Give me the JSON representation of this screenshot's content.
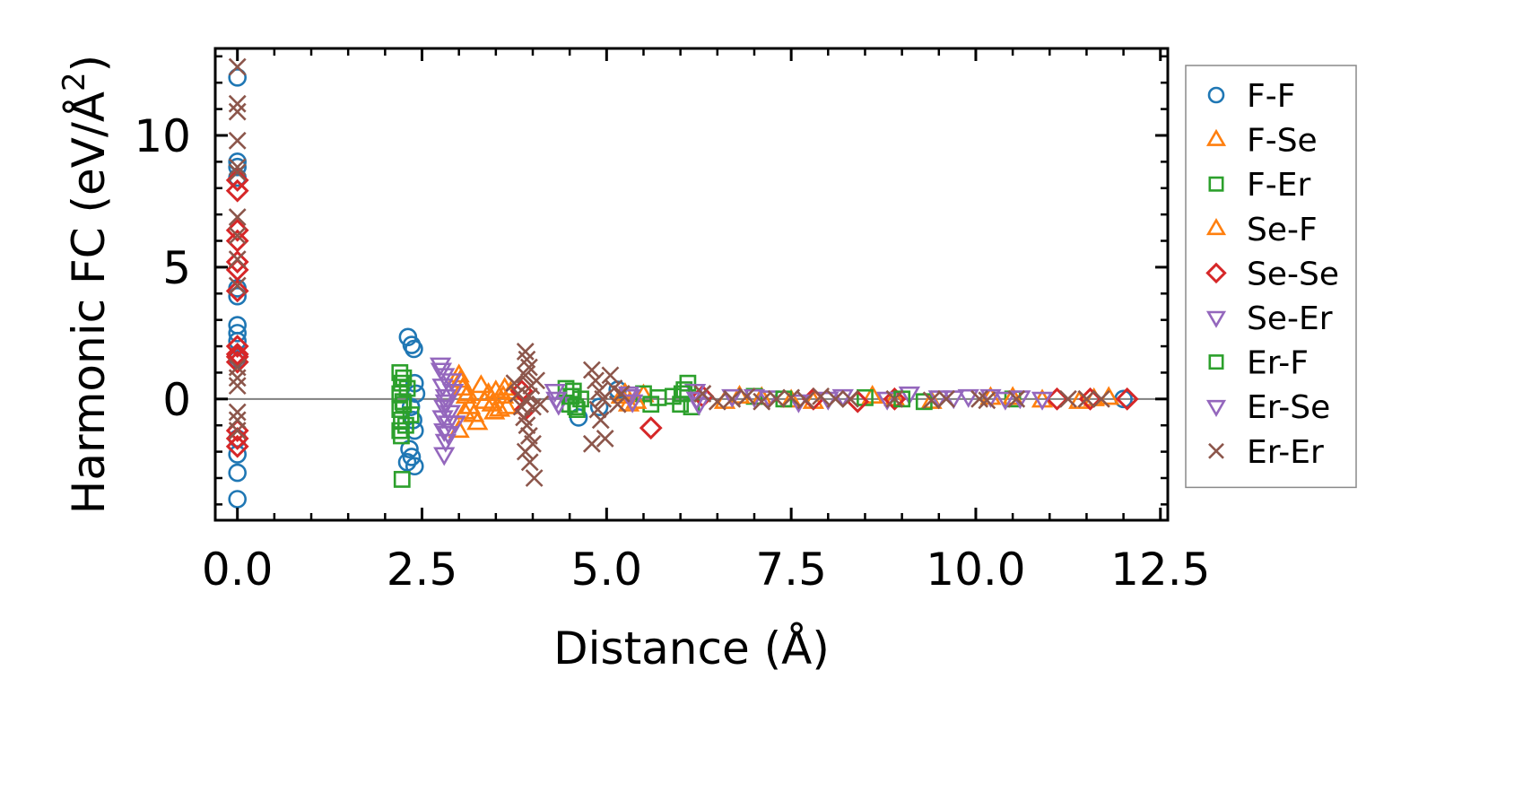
{
  "chart_data": {
    "type": "scatter",
    "xlabel": "Distance (Å)",
    "ylabel_prefix": "Harmonic FC (eV/Å",
    "ylabel_sup": "2",
    "ylabel_suffix": ")",
    "xlim": [
      -0.3,
      12.6
    ],
    "ylim": [
      -4.6,
      13.3
    ],
    "xticks": [
      "0.0",
      "2.5",
      "5.0",
      "7.5",
      "10.0",
      "12.5"
    ],
    "yticks": [
      "0",
      "5",
      "10"
    ],
    "legend_position": "right-outside",
    "series": [
      {
        "name": "F-F",
        "marker": "circle",
        "color": "#1f77b4",
        "points": [
          [
            0,
            12.2
          ],
          [
            0,
            9
          ],
          [
            0,
            8.8
          ],
          [
            0,
            8.4
          ],
          [
            0,
            4.2
          ],
          [
            0,
            3.9
          ],
          [
            0,
            2.8
          ],
          [
            0,
            2.5
          ],
          [
            0,
            2.2
          ],
          [
            0,
            1.5
          ],
          [
            0,
            -1.5
          ],
          [
            0,
            -2.1
          ],
          [
            0,
            -2.8
          ],
          [
            0,
            -3.8
          ],
          [
            2.31,
            2.35
          ],
          [
            2.36,
            2.05
          ],
          [
            2.39,
            1.9
          ],
          [
            2.4,
            0.6
          ],
          [
            2.42,
            0.2
          ],
          [
            2.35,
            -0.3
          ],
          [
            2.38,
            -0.8
          ],
          [
            2.4,
            -1.2
          ],
          [
            2.33,
            -1.9
          ],
          [
            2.36,
            -2.2
          ],
          [
            2.3,
            -2.4
          ],
          [
            2.4,
            -2.55
          ],
          [
            4.62,
            -0.7
          ],
          [
            4.9,
            -0.3
          ],
          [
            5.15,
            0.35
          ],
          [
            12.0,
            0
          ]
        ]
      },
      {
        "name": "F-Se",
        "marker": "triangle-up",
        "color": "#ff7f0e",
        "points": [
          [
            3.0,
            0.9
          ],
          [
            3.05,
            0.4
          ],
          [
            3.1,
            0.1
          ],
          [
            3.15,
            -0.3
          ],
          [
            3.2,
            -0.6
          ],
          [
            3.25,
            -0.9
          ],
          [
            3.0,
            -1.2
          ],
          [
            3.3,
            0.5
          ],
          [
            3.4,
            0.2
          ],
          [
            3.45,
            -0.2
          ],
          [
            3.5,
            0.3
          ],
          [
            3.55,
            -0.4
          ],
          [
            3.6,
            0.1
          ],
          [
            3.65,
            -0.3
          ],
          [
            3.7,
            0.25
          ],
          [
            5.2,
            0.1
          ],
          [
            5.3,
            -0.2
          ],
          [
            5.5,
            0.15
          ],
          [
            6.6,
            -0.1
          ],
          [
            7.1,
            0.05
          ],
          [
            7.8,
            -0.1
          ],
          [
            8.6,
            0.1
          ],
          [
            9.4,
            -0.1
          ],
          [
            10.2,
            0.05
          ],
          [
            10.9,
            -0.05
          ],
          [
            11.4,
            -0.1
          ],
          [
            11.8,
            0.05
          ]
        ]
      },
      {
        "name": "F-Er",
        "marker": "square",
        "color": "#2ca02c",
        "points": [
          [
            2.2,
            1.0
          ],
          [
            2.22,
            0.6
          ],
          [
            2.2,
            0.2
          ],
          [
            2.24,
            -0.1
          ],
          [
            2.2,
            -0.4
          ],
          [
            2.22,
            -0.8
          ],
          [
            2.2,
            -1.2
          ],
          [
            2.22,
            -1.4
          ],
          [
            2.23,
            -3.05
          ],
          [
            2.3,
            0.4
          ],
          [
            2.35,
            -0.6
          ],
          [
            4.45,
            0.4
          ],
          [
            4.5,
            -0.2
          ],
          [
            4.55,
            0.3
          ],
          [
            4.6,
            -0.4
          ],
          [
            4.65,
            0.0
          ],
          [
            5.5,
            0.2
          ],
          [
            5.6,
            -0.2
          ],
          [
            5.9,
            0.1
          ],
          [
            6.0,
            -0.2
          ],
          [
            6.05,
            0.35
          ],
          [
            6.1,
            0.6
          ],
          [
            6.15,
            -0.3
          ],
          [
            7.0,
            0.1
          ],
          [
            8.5,
            0.05
          ],
          [
            9.3,
            -0.1
          ],
          [
            10.5,
            0.0
          ]
        ]
      },
      {
        "name": "Se-F",
        "marker": "triangle-up",
        "color": "#ff7f0e",
        "points": [
          [
            3.02,
            0.7
          ],
          [
            3.08,
            -0.5
          ],
          [
            3.12,
            0.2
          ],
          [
            3.35,
            -0.1
          ],
          [
            3.48,
            -0.5
          ],
          [
            3.62,
            0.4
          ],
          [
            5.25,
            0.2
          ],
          [
            5.4,
            -0.1
          ],
          [
            6.8,
            0.1
          ],
          [
            7.5,
            -0.05
          ],
          [
            8.9,
            0.0
          ],
          [
            10.5,
            0.05
          ],
          [
            11.6,
            0.0
          ]
        ]
      },
      {
        "name": "Se-Se",
        "marker": "diamond",
        "color": "#d62728",
        "points": [
          [
            0,
            8.3
          ],
          [
            0,
            7.9
          ],
          [
            0,
            6.4
          ],
          [
            0,
            6.0
          ],
          [
            0,
            5.2
          ],
          [
            0,
            4.9
          ],
          [
            0,
            4.1
          ],
          [
            0,
            2.0
          ],
          [
            0,
            1.7
          ],
          [
            0,
            1.6
          ],
          [
            0,
            1.4
          ],
          [
            0,
            -1.2
          ],
          [
            0,
            -1.5
          ],
          [
            0,
            -1.8
          ],
          [
            3.85,
            0.3
          ],
          [
            3.9,
            -0.4
          ],
          [
            5.6,
            -1.1
          ],
          [
            6.3,
            0.1
          ],
          [
            7.8,
            0.0
          ],
          [
            8.4,
            -0.1
          ],
          [
            8.9,
            0.0
          ],
          [
            11.1,
            0.0
          ],
          [
            11.55,
            0.0
          ],
          [
            12.05,
            0.0
          ]
        ]
      },
      {
        "name": "Se-Er",
        "marker": "triangle-down",
        "color": "#9467bd",
        "points": [
          [
            2.75,
            1.3
          ],
          [
            2.8,
            0.9
          ],
          [
            2.78,
            0.5
          ],
          [
            2.82,
            0.1
          ],
          [
            2.8,
            -0.3
          ],
          [
            2.78,
            -0.7
          ],
          [
            2.8,
            -1.2
          ],
          [
            2.82,
            -1.6
          ],
          [
            2.8,
            -2.1
          ],
          [
            2.85,
            -1.3
          ],
          [
            2.9,
            0.7
          ],
          [
            2.88,
            -0.5
          ],
          [
            2.92,
            0.3
          ],
          [
            2.95,
            -0.9
          ],
          [
            4.3,
            0.3
          ],
          [
            4.35,
            -0.2
          ],
          [
            5.3,
            0.2
          ],
          [
            5.35,
            -0.1
          ],
          [
            6.2,
            0.3
          ],
          [
            6.25,
            -0.2
          ],
          [
            6.7,
            0.1
          ],
          [
            7.2,
            0.05
          ],
          [
            7.6,
            -0.1
          ],
          [
            8.2,
            0.1
          ],
          [
            8.8,
            0.0
          ],
          [
            9.1,
            0.2
          ],
          [
            9.5,
            0.05
          ],
          [
            9.9,
            0.1
          ],
          [
            10.2,
            0.1
          ],
          [
            10.6,
            0.05
          ],
          [
            10.9,
            0.0
          ]
        ]
      },
      {
        "name": "Er-F",
        "marker": "square",
        "color": "#2ca02c",
        "points": [
          [
            2.25,
            0.8
          ],
          [
            2.25,
            -0.2
          ],
          [
            2.28,
            -1.0
          ],
          [
            4.52,
            0.1
          ],
          [
            4.58,
            -0.3
          ],
          [
            5.7,
            0.05
          ],
          [
            6.02,
            0.2
          ],
          [
            7.4,
            0.0
          ],
          [
            9.0,
            0.0
          ]
        ]
      },
      {
        "name": "Er-Se",
        "marker": "triangle-down",
        "color": "#9467bd",
        "points": [
          [
            2.76,
            1.1
          ],
          [
            2.82,
            -0.1
          ],
          [
            2.86,
            -0.9
          ],
          [
            4.32,
            0.0
          ],
          [
            5.32,
            0.1
          ],
          [
            6.22,
            0.0
          ],
          [
            7.0,
            0.1
          ],
          [
            8.0,
            0.0
          ],
          [
            9.7,
            0.05
          ],
          [
            10.4,
            0.0
          ]
        ]
      },
      {
        "name": "Er-Er",
        "marker": "x",
        "color": "#8c564b",
        "points": [
          [
            0,
            12.6
          ],
          [
            0,
            11.2
          ],
          [
            0,
            10.9
          ],
          [
            0,
            9.8
          ],
          [
            0,
            8.8
          ],
          [
            0,
            8.6
          ],
          [
            0,
            6.9
          ],
          [
            0,
            6.2
          ],
          [
            0,
            5.3
          ],
          [
            0,
            4.3
          ],
          [
            0,
            1.2
          ],
          [
            0,
            0.8
          ],
          [
            0,
            0.5
          ],
          [
            0,
            -0.5
          ],
          [
            0,
            -0.8
          ],
          [
            0,
            -1.2
          ],
          [
            3.75,
            0.6
          ],
          [
            3.8,
            0.2
          ],
          [
            3.85,
            -0.3
          ],
          [
            3.9,
            1.8
          ],
          [
            3.92,
            1.5
          ],
          [
            3.95,
            1.2
          ],
          [
            3.9,
            0.9
          ],
          [
            3.98,
            0.5
          ],
          [
            3.95,
            0.1
          ],
          [
            4.0,
            -0.3
          ],
          [
            3.88,
            -0.7
          ],
          [
            3.92,
            -1.0
          ],
          [
            3.95,
            -1.4
          ],
          [
            4.0,
            -1.7
          ],
          [
            3.9,
            -2.0
          ],
          [
            3.96,
            -2.4
          ],
          [
            4.02,
            -3.0
          ],
          [
            4.05,
            0.7
          ],
          [
            4.1,
            -0.2
          ],
          [
            4.8,
            1.1
          ],
          [
            4.85,
            0.7
          ],
          [
            4.9,
            0.3
          ],
          [
            4.95,
            0.0
          ],
          [
            4.88,
            -0.4
          ],
          [
            4.92,
            -0.8
          ],
          [
            4.8,
            -1.7
          ],
          [
            4.98,
            -1.5
          ],
          [
            5.05,
            0.9
          ],
          [
            5.1,
            0.4
          ],
          [
            5.15,
            -0.2
          ],
          [
            5.2,
            0.2
          ],
          [
            6.3,
            0.2
          ],
          [
            6.5,
            -0.1
          ],
          [
            6.7,
            0.0
          ],
          [
            6.9,
            0.1
          ],
          [
            7.1,
            -0.1
          ],
          [
            7.3,
            0.0
          ],
          [
            7.5,
            0.05
          ],
          [
            7.7,
            -0.05
          ],
          [
            7.9,
            0.1
          ],
          [
            8.1,
            0.0
          ],
          [
            8.3,
            0.0
          ],
          [
            8.9,
            0.0
          ],
          [
            9.4,
            -0.05
          ],
          [
            9.6,
            0.0
          ],
          [
            10.05,
            0.0
          ],
          [
            10.15,
            -0.05
          ],
          [
            10.55,
            0.0
          ],
          [
            11.25,
            0.0
          ],
          [
            11.5,
            0.0
          ],
          [
            11.7,
            0.0
          ]
        ]
      }
    ]
  }
}
